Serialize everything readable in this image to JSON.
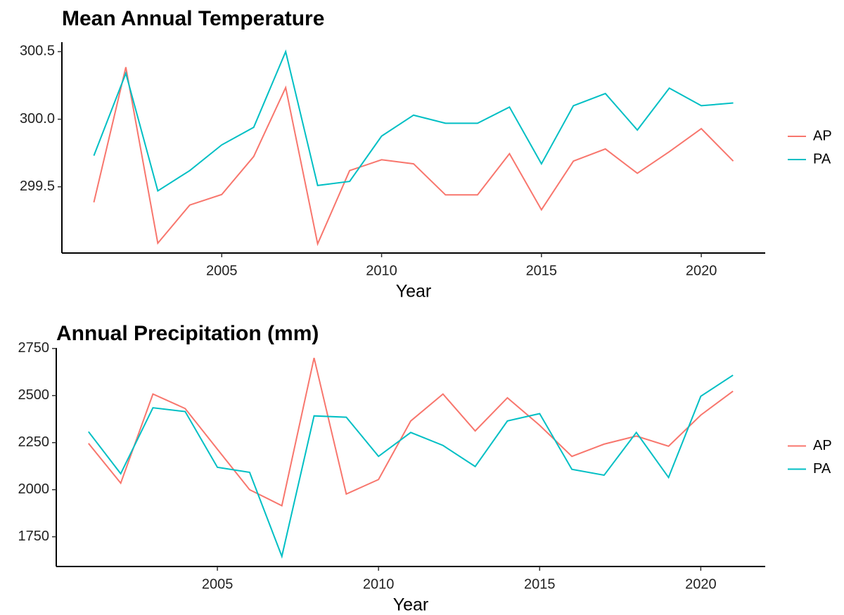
{
  "chart_data": [
    {
      "type": "line",
      "title": "Mean Annual Temperature",
      "x_label": "Year",
      "x": [
        2001,
        2002,
        2003,
        2004,
        2005,
        2006,
        2007,
        2008,
        2009,
        2010,
        2011,
        2012,
        2013,
        2014,
        2015,
        2016,
        2017,
        2018,
        2019,
        2020,
        2021
      ],
      "series": [
        {
          "name": "AP",
          "color": "#F8766D",
          "values": [
            299.385,
            300.385,
            299.083,
            299.365,
            299.443,
            299.724,
            300.234,
            299.078,
            299.62,
            299.7,
            299.67,
            299.44,
            299.44,
            299.745,
            299.33,
            299.69,
            299.78,
            299.6,
            299.76,
            299.93,
            299.69
          ]
        },
        {
          "name": "PA",
          "color": "#00BFC4",
          "values": [
            299.73,
            300.34,
            299.47,
            299.62,
            299.81,
            299.94,
            300.5,
            299.51,
            299.54,
            299.875,
            300.03,
            299.97,
            299.97,
            300.09,
            299.67,
            300.1,
            300.19,
            299.92,
            300.23,
            300.1,
            300.12
          ]
        }
      ],
      "xlim": [
        2000,
        2022
      ],
      "xticks": [
        2005,
        2010,
        2015,
        2020
      ],
      "ylim": [
        299.01,
        300.57
      ],
      "yticks": [
        299.5,
        {
          "value": 300,
          "label": "300.0"
        },
        300.5
      ],
      "grid": false,
      "legend": "right"
    },
    {
      "type": "line",
      "title": "Annual Precipitation (mm)",
      "x_label": "Year",
      "x": [
        2001,
        2002,
        2003,
        2004,
        2005,
        2006,
        2007,
        2008,
        2009,
        2010,
        2011,
        2012,
        2013,
        2014,
        2015,
        2016,
        2017,
        2018,
        2019,
        2020,
        2021
      ],
      "series": [
        {
          "name": "AP",
          "color": "#F8766D",
          "values": [
            2246,
            2035,
            2508,
            2431,
            2215,
            2000,
            1915,
            2700,
            1977,
            2054,
            2365,
            2508,
            2312,
            2488,
            2342,
            2177,
            2242,
            2285,
            2231,
            2396,
            2523
          ]
        },
        {
          "name": "PA",
          "color": "#00BFC4",
          "values": [
            2308,
            2085,
            2435,
            2415,
            2119,
            2092,
            1646,
            2392,
            2385,
            2177,
            2304,
            2235,
            2123,
            2365,
            2404,
            2108,
            2077,
            2304,
            2065,
            2496,
            2608
          ]
        }
      ],
      "xlim": [
        2000,
        2022
      ],
      "xticks": [
        2005,
        2010,
        2015,
        2020
      ],
      "ylim": [
        1592,
        2753
      ],
      "yticks": [
        1750,
        2000,
        2250,
        2500,
        2750
      ],
      "grid": false,
      "legend": "right"
    }
  ]
}
